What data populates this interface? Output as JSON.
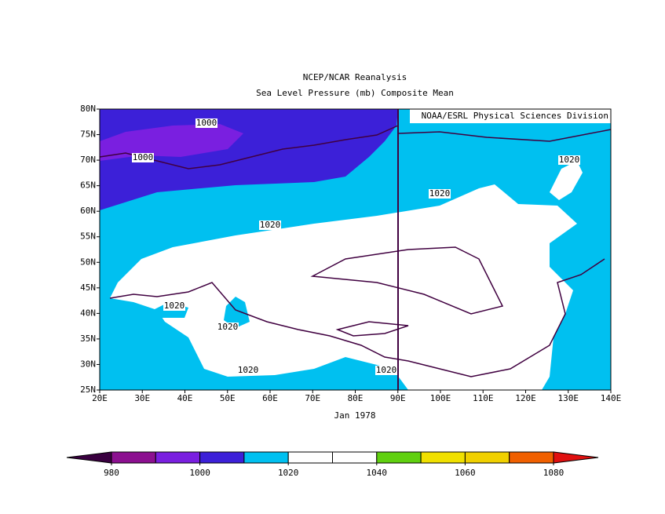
{
  "chart_data": {
    "type": "map",
    "title": "NCEP/NCAR Reanalysis",
    "subtitle": "Sea Level Pressure (mb) Composite Mean",
    "credit": "NOAA/ESRL Physical Sciences Division",
    "xlabel": "Jan 1978",
    "xlim": [
      20,
      140
    ],
    "ylim": [
      25,
      80
    ],
    "xticks": [
      {
        "value": 20,
        "label": "20E"
      },
      {
        "value": 30,
        "label": "30E"
      },
      {
        "value": 40,
        "label": "40E"
      },
      {
        "value": 50,
        "label": "50E"
      },
      {
        "value": 60,
        "label": "60E"
      },
      {
        "value": 70,
        "label": "70E"
      },
      {
        "value": 80,
        "label": "80E"
      },
      {
        "value": 90,
        "label": "90E"
      },
      {
        "value": 100,
        "label": "100E"
      },
      {
        "value": 110,
        "label": "110E"
      },
      {
        "value": 120,
        "label": "120E"
      },
      {
        "value": 130,
        "label": "130E"
      },
      {
        "value": 140,
        "label": "140E"
      }
    ],
    "yticks": [
      {
        "value": 25,
        "label": "25N"
      },
      {
        "value": 30,
        "label": "30N"
      },
      {
        "value": 35,
        "label": "35N"
      },
      {
        "value": 40,
        "label": "40N"
      },
      {
        "value": 45,
        "label": "45N"
      },
      {
        "value": 50,
        "label": "50N"
      },
      {
        "value": 55,
        "label": "55N"
      },
      {
        "value": 60,
        "label": "60N"
      },
      {
        "value": 65,
        "label": "65N"
      },
      {
        "value": 70,
        "label": "70N"
      },
      {
        "value": 75,
        "label": "75N"
      },
      {
        "value": 80,
        "label": "80N"
      }
    ],
    "contour_labels": [
      1000,
      1000,
      1020,
      1020,
      1020,
      1020,
      1020,
      1020,
      1020
    ],
    "colorbar": {
      "ticks": [
        980,
        1000,
        1020,
        1040,
        1060,
        1080
      ],
      "colors": [
        "#3a0040",
        "#8c1090",
        "#7a1fe0",
        "#3c20d8",
        "#00c0f0",
        "#ffffff",
        "#ffffff",
        "#60d010",
        "#f0e000",
        "#f0d000",
        "#f06000",
        "#e01010"
      ]
    }
  }
}
